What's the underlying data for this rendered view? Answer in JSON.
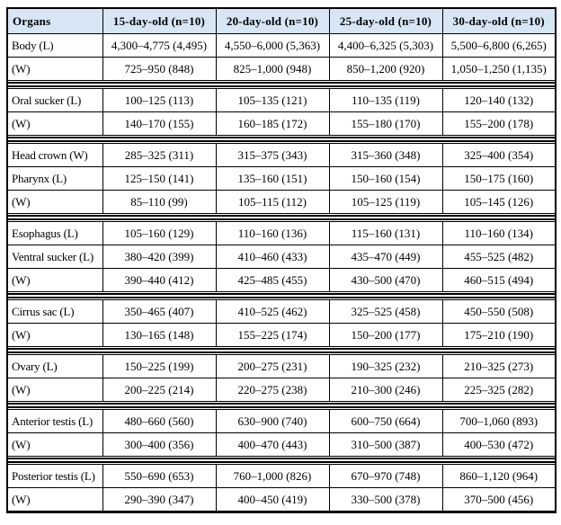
{
  "table": {
    "columns": [
      "Organs",
      "15-day-old (n=10)",
      "20-day-old (n=10)",
      "25-day-old (n=10)",
      "30-day-old (n=10)"
    ],
    "groups": [
      {
        "rows": [
          {
            "organ": "Body (L)",
            "values": [
              "4,300–4,775 (4,495)",
              "4,550–6,000 (5,363)",
              "4,400–6,325 (5,303)",
              "5,500–6,800 (6,265)"
            ]
          },
          {
            "organ": "(W)",
            "values": [
              "725–950 (848)",
              "825–1,000 (948)",
              "850–1,200 (920)",
              "1,050–1,250 (1,135)"
            ]
          }
        ]
      },
      {
        "rows": [
          {
            "organ": "Oral sucker (L)",
            "values": [
              "100–125 (113)",
              "105–135 (121)",
              "110–135 (119)",
              "120–140 (132)"
            ]
          },
          {
            "organ": "(W)",
            "values": [
              "140–170 (155)",
              "160–185 (172)",
              "155–180 (170)",
              "155–200 (178)"
            ]
          }
        ]
      },
      {
        "rows": [
          {
            "organ": "Head crown (W)",
            "values": [
              "285–325 (311)",
              "315–375 (343)",
              "315–360 (348)",
              "325–400 (354)"
            ]
          },
          {
            "organ": "Pharynx (L)",
            "values": [
              "125–150 (141)",
              "135–160 (151)",
              "150–160 (154)",
              "150–175 (160)"
            ]
          },
          {
            "organ": "(W)",
            "values": [
              "85–110 (99)",
              "105–115 (112)",
              "105–125 (119)",
              "105–145 (126)"
            ]
          }
        ]
      },
      {
        "rows": [
          {
            "organ": "Esophagus (L)",
            "values": [
              "105–160 (129)",
              "110–160 (136)",
              "115–160 (131)",
              "110–160 (134)"
            ]
          },
          {
            "organ": "Ventral sucker (L)",
            "values": [
              "380–420 (399)",
              "410–460 (433)",
              "435–470 (449)",
              "455–525 (482)"
            ]
          },
          {
            "organ": "(W)",
            "values": [
              "390–440 (412)",
              "425–485 (455)",
              "430–500 (470)",
              "460–515 (494)"
            ]
          }
        ]
      },
      {
        "rows": [
          {
            "organ": "Cirrus sac (L)",
            "values": [
              "350–465 (407)",
              "410–525 (462)",
              "325–525 (458)",
              "450–550 (508)"
            ]
          },
          {
            "organ": "(W)",
            "values": [
              "130–165 (148)",
              "155–225 (174)",
              "150–200 (177)",
              "175–210 (190)"
            ]
          }
        ]
      },
      {
        "rows": [
          {
            "organ": "Ovary (L)",
            "values": [
              "150–225 (199)",
              "200–275 (231)",
              "190–325 (232)",
              "210–325 (273)"
            ]
          },
          {
            "organ": "(W)",
            "values": [
              "200–225 (214)",
              "220–275 (238)",
              "210–300 (246)",
              "225–325 (282)"
            ]
          }
        ]
      },
      {
        "rows": [
          {
            "organ": "Anterior testis (L)",
            "values": [
              "480–660 (560)",
              "630–900 (740)",
              "600–750 (664)",
              "700–1,060 (893)"
            ]
          },
          {
            "organ": "(W)",
            "values": [
              "300–400 (356)",
              "400–470 (443)",
              "310–500 (387)",
              "400–530 (472)"
            ]
          }
        ]
      },
      {
        "rows": [
          {
            "organ": "Posterior testis (L)",
            "values": [
              "550–690 (653)",
              "760–1,000 (826)",
              "670–970 (748)",
              "860–1,120 (964)"
            ]
          },
          {
            "organ": "(W)",
            "values": [
              "290–390 (347)",
              "400–450 (419)",
              "330–500 (378)",
              "370–500 (456)"
            ]
          }
        ]
      }
    ],
    "colors": {
      "header_background": "#d7e6f5",
      "border": "#000000",
      "text": "#000000"
    }
  }
}
